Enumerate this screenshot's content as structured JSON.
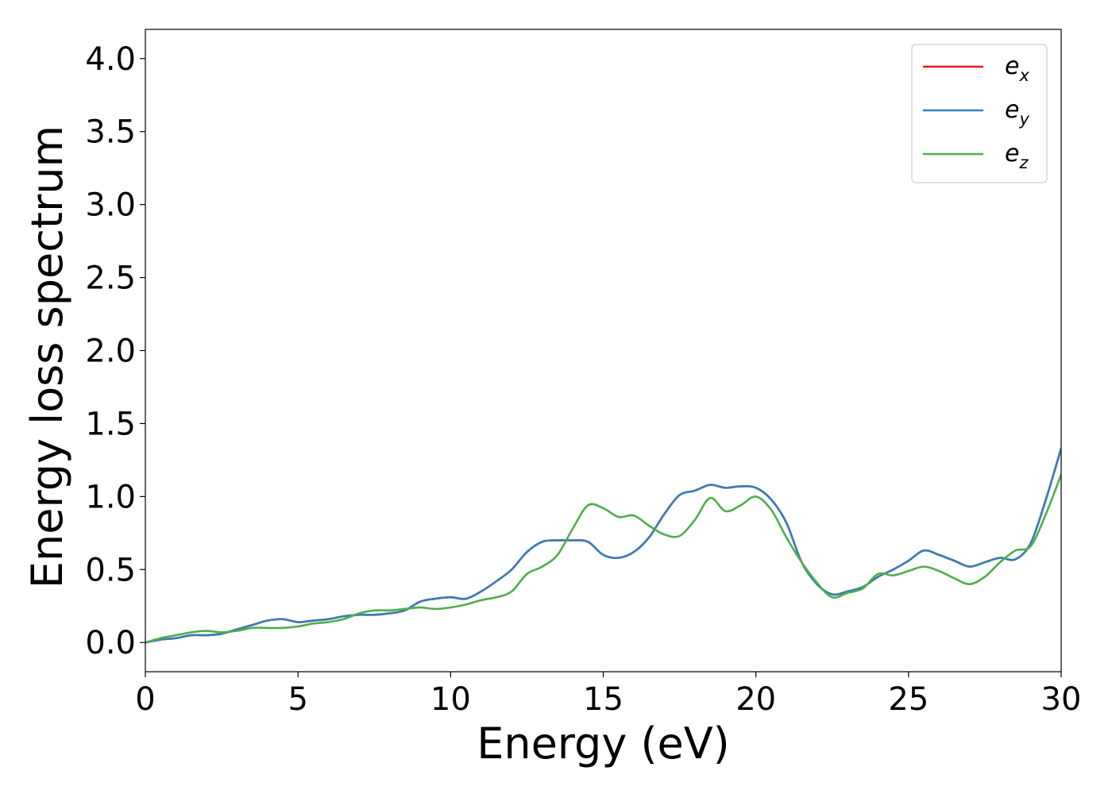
{
  "chart_data": {
    "type": "line",
    "title": "",
    "xlabel": "Energy (eV)",
    "ylabel": "Energy loss spectrum",
    "xlim": [
      0,
      30
    ],
    "ylim": [
      -0.2,
      4.2
    ],
    "xticks": [
      0,
      5,
      10,
      15,
      20,
      25,
      30
    ],
    "xtick_labels": [
      "0",
      "5",
      "10",
      "15",
      "20",
      "25",
      "30"
    ],
    "yticks": [
      0.0,
      0.5,
      1.0,
      1.5,
      2.0,
      2.5,
      3.0,
      3.5,
      4.0
    ],
    "ytick_labels": [
      "0.0",
      "0.5",
      "1.0",
      "1.5",
      "2.0",
      "2.5",
      "3.0",
      "3.5",
      "4.0"
    ],
    "grid": false,
    "legend_position": "top-right",
    "series": [
      {
        "name": "e_x",
        "legend_base": "e",
        "legend_sub": "x",
        "color": "#e41a1c",
        "x": [
          0,
          0.5,
          1,
          1.5,
          2,
          2.5,
          3,
          3.5,
          4,
          4.5,
          5,
          5.5,
          6,
          6.5,
          7,
          7.5,
          8,
          8.5,
          9,
          9.5,
          10,
          10.5,
          11,
          11.5,
          12,
          12.5,
          13,
          13.5,
          14,
          14.5,
          15,
          15.5,
          16,
          16.5,
          17,
          17.5,
          18,
          18.5,
          19,
          19.5,
          20,
          20.5,
          21,
          21.5,
          22,
          22.5,
          23,
          23.5,
          24,
          24.5,
          25,
          25.5,
          26,
          26.5,
          27,
          27.5,
          28,
          28.5,
          29,
          29.5,
          30
        ],
        "y": [
          0.0,
          0.02,
          0.03,
          0.05,
          0.05,
          0.06,
          0.09,
          0.12,
          0.15,
          0.16,
          0.14,
          0.15,
          0.16,
          0.18,
          0.19,
          0.19,
          0.2,
          0.22,
          0.28,
          0.3,
          0.31,
          0.3,
          0.35,
          0.42,
          0.5,
          0.62,
          0.69,
          0.7,
          0.7,
          0.69,
          0.6,
          0.58,
          0.62,
          0.72,
          0.88,
          1.01,
          1.04,
          1.08,
          1.06,
          1.07,
          1.06,
          0.98,
          0.82,
          0.55,
          0.4,
          0.33,
          0.35,
          0.38,
          0.45,
          0.5,
          0.56,
          0.63,
          0.6,
          0.56,
          0.52,
          0.55,
          0.58,
          0.57,
          0.68,
          0.98,
          1.33
        ]
      },
      {
        "name": "e_y",
        "legend_base": "e",
        "legend_sub": "y",
        "color": "#377eb8",
        "x": [
          0,
          0.5,
          1,
          1.5,
          2,
          2.5,
          3,
          3.5,
          4,
          4.5,
          5,
          5.5,
          6,
          6.5,
          7,
          7.5,
          8,
          8.5,
          9,
          9.5,
          10,
          10.5,
          11,
          11.5,
          12,
          12.5,
          13,
          13.5,
          14,
          14.5,
          15,
          15.5,
          16,
          16.5,
          17,
          17.5,
          18,
          18.5,
          19,
          19.5,
          20,
          20.5,
          21,
          21.5,
          22,
          22.5,
          23,
          23.5,
          24,
          24.5,
          25,
          25.5,
          26,
          26.5,
          27,
          27.5,
          28,
          28.5,
          29,
          29.5,
          30
        ],
        "y": [
          0.0,
          0.02,
          0.03,
          0.05,
          0.05,
          0.06,
          0.09,
          0.12,
          0.15,
          0.16,
          0.14,
          0.15,
          0.16,
          0.18,
          0.19,
          0.19,
          0.2,
          0.22,
          0.28,
          0.3,
          0.31,
          0.3,
          0.35,
          0.42,
          0.5,
          0.62,
          0.69,
          0.7,
          0.7,
          0.69,
          0.6,
          0.58,
          0.62,
          0.72,
          0.88,
          1.01,
          1.04,
          1.08,
          1.06,
          1.07,
          1.06,
          0.98,
          0.82,
          0.55,
          0.4,
          0.33,
          0.35,
          0.38,
          0.45,
          0.5,
          0.56,
          0.63,
          0.6,
          0.56,
          0.52,
          0.55,
          0.58,
          0.57,
          0.68,
          0.98,
          1.33
        ]
      },
      {
        "name": "e_z",
        "legend_base": "e",
        "legend_sub": "z",
        "color": "#4daf4a",
        "x": [
          0,
          0.5,
          1,
          1.5,
          2,
          2.5,
          3,
          3.5,
          4,
          4.5,
          5,
          5.5,
          6,
          6.5,
          7,
          7.5,
          8,
          8.5,
          9,
          9.5,
          10,
          10.5,
          11,
          11.5,
          12,
          12.5,
          13,
          13.5,
          14,
          14.5,
          15,
          15.5,
          16,
          16.5,
          17,
          17.5,
          18,
          18.5,
          19,
          19.5,
          20,
          20.5,
          21,
          21.5,
          22,
          22.5,
          23,
          23.5,
          24,
          24.5,
          25,
          25.5,
          26,
          26.5,
          27,
          27.5,
          28,
          28.5,
          29,
          29.5,
          30
        ],
        "y": [
          0.0,
          0.03,
          0.05,
          0.07,
          0.08,
          0.07,
          0.08,
          0.1,
          0.1,
          0.1,
          0.11,
          0.13,
          0.14,
          0.16,
          0.2,
          0.22,
          0.22,
          0.23,
          0.24,
          0.23,
          0.24,
          0.26,
          0.29,
          0.31,
          0.35,
          0.47,
          0.52,
          0.6,
          0.78,
          0.94,
          0.92,
          0.86,
          0.87,
          0.8,
          0.74,
          0.73,
          0.84,
          0.99,
          0.9,
          0.94,
          1.0,
          0.91,
          0.72,
          0.55,
          0.41,
          0.31,
          0.34,
          0.37,
          0.47,
          0.46,
          0.49,
          0.52,
          0.49,
          0.44,
          0.4,
          0.45,
          0.55,
          0.63,
          0.66,
          0.88,
          1.15
        ]
      }
    ]
  }
}
